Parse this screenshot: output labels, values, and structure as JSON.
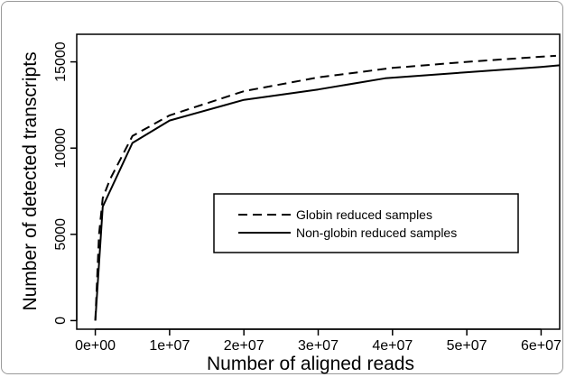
{
  "chart_data": {
    "type": "line",
    "xlabel": "Number of aligned reads",
    "ylabel": "Number of detected transcripts",
    "xlim": [
      -2500000,
      62500000
    ],
    "ylim": [
      -500,
      16600
    ],
    "x_ticks": [
      0,
      10000000,
      20000000,
      30000000,
      40000000,
      50000000,
      60000000
    ],
    "x_tick_labels": [
      "0e+00",
      "1e+07",
      "2e+07",
      "3e+07",
      "4e+07",
      "5e+07",
      "6e+07"
    ],
    "y_ticks": [
      0,
      5000,
      10000,
      15000
    ],
    "y_tick_labels": [
      "0",
      "5000",
      "10000",
      "15000"
    ],
    "legend_position": "center-right",
    "grid": false,
    "series": [
      {
        "name": "Globin reduced samples",
        "line_style": "dashed",
        "color": "#000000",
        "x": [
          0,
          500000,
          1000000,
          2000000,
          5000000,
          10000000,
          20000000,
          30000000,
          40000000,
          50000000,
          60000000,
          62000000
        ],
        "y": [
          0,
          5000,
          7100,
          8200,
          10700,
          11900,
          13300,
          14100,
          14650,
          15000,
          15300,
          15350
        ]
      },
      {
        "name": "Non-globin reduced samples",
        "line_style": "solid",
        "color": "#000000",
        "x": [
          0,
          1000000,
          5000000,
          10000000,
          20000000,
          30000000,
          39000000,
          50000000,
          60000000,
          62500000
        ],
        "y": [
          0,
          6600,
          10300,
          11600,
          12800,
          13400,
          14050,
          14400,
          14700,
          14800
        ]
      }
    ]
  }
}
